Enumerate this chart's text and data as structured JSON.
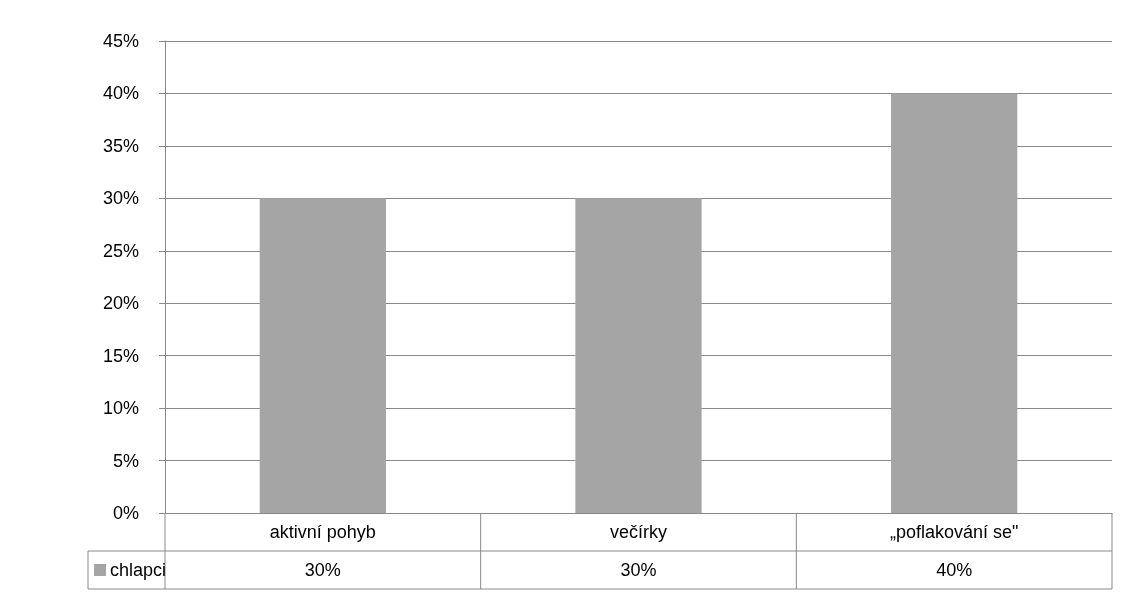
{
  "chart_data": {
    "type": "bar",
    "categories": [
      "aktivní pohyb",
      "večírky",
      "„poflakování se\""
    ],
    "series": [
      {
        "name": "chlapci",
        "color": "#a5a5a5",
        "values": [
          30,
          30,
          40
        ],
        "value_labels": [
          "30%",
          "30%",
          "40%"
        ]
      }
    ],
    "ylim": [
      0,
      45
    ],
    "yticks": [
      {
        "value": 0,
        "label": "0%"
      },
      {
        "value": 5,
        "label": "5%"
      },
      {
        "value": 10,
        "label": "10%"
      },
      {
        "value": 15,
        "label": "15%"
      },
      {
        "value": 20,
        "label": "20%"
      },
      {
        "value": 25,
        "label": "25%"
      },
      {
        "value": 30,
        "label": "30%"
      },
      {
        "value": 35,
        "label": "35%"
      },
      {
        "value": 40,
        "label": "40%"
      },
      {
        "value": 45,
        "label": "45%"
      }
    ],
    "grid": "y",
    "legend": "bottom"
  }
}
